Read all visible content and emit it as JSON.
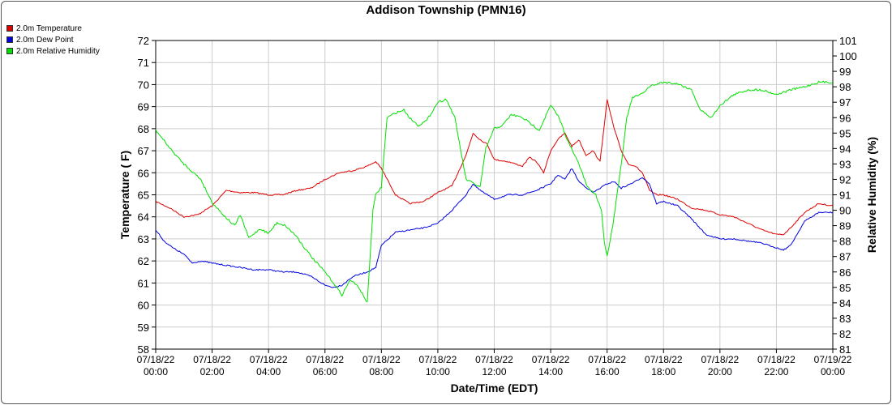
{
  "chart_data": {
    "type": "line",
    "title": "Addison Township (PMN16)",
    "xlabel": "Date/Time (EDT)",
    "ylabel": "Temperature ( F)",
    "y2label": "Relative Humidity (%)",
    "xlim": [
      0,
      24
    ],
    "ylim": [
      58,
      72
    ],
    "y2lim": [
      81,
      101
    ],
    "grid": true,
    "legend_position": "top-left",
    "x_ticks": [
      {
        "date": "07/18/22",
        "time": "00:00"
      },
      {
        "date": "07/18/22",
        "time": "02:00"
      },
      {
        "date": "07/18/22",
        "time": "04:00"
      },
      {
        "date": "07/18/22",
        "time": "06:00"
      },
      {
        "date": "07/18/22",
        "time": "08:00"
      },
      {
        "date": "07/18/22",
        "time": "10:00"
      },
      {
        "date": "07/18/22",
        "time": "12:00"
      },
      {
        "date": "07/18/22",
        "time": "14:00"
      },
      {
        "date": "07/18/22",
        "time": "16:00"
      },
      {
        "date": "07/18/22",
        "time": "18:00"
      },
      {
        "date": "07/18/22",
        "time": "20:00"
      },
      {
        "date": "07/18/22",
        "time": "22:00"
      },
      {
        "date": "07/19/22",
        "time": "00:00"
      }
    ],
    "y_ticks": [
      "58",
      "59",
      "60",
      "61",
      "62",
      "63",
      "64",
      "65",
      "66",
      "67",
      "68",
      "69",
      "70",
      "71",
      "72"
    ],
    "y2_ticks": [
      "81",
      "82",
      "83",
      "84",
      "85",
      "86",
      "87",
      "88",
      "89",
      "90",
      "91",
      "92",
      "93",
      "94",
      "95",
      "96",
      "97",
      "98",
      "99",
      "100",
      "101"
    ],
    "series": [
      {
        "name": "2.0m Temperature",
        "color": "#e00000",
        "axis": "left",
        "x": [
          0.0,
          0.5,
          1.0,
          1.5,
          2.0,
          2.5,
          3.0,
          3.5,
          4.0,
          4.5,
          5.0,
          5.5,
          6.0,
          6.5,
          7.0,
          7.5,
          7.8,
          8.0,
          8.5,
          9.0,
          9.5,
          10.0,
          10.5,
          11.0,
          11.25,
          11.5,
          11.75,
          12.0,
          12.5,
          13.0,
          13.25,
          13.5,
          13.75,
          14.0,
          14.25,
          14.5,
          14.75,
          15.0,
          15.25,
          15.5,
          15.75,
          16.0,
          16.25,
          16.5,
          16.75,
          17.0,
          17.25,
          17.5,
          17.75,
          18.0,
          18.5,
          19.0,
          19.5,
          20.0,
          20.5,
          21.0,
          21.5,
          22.0,
          22.25,
          22.5,
          23.0,
          23.5,
          24.0
        ],
        "y": [
          64.7,
          64.4,
          64.0,
          64.1,
          64.5,
          65.2,
          65.1,
          65.1,
          65.0,
          65.0,
          65.2,
          65.3,
          65.7,
          66.0,
          66.1,
          66.3,
          66.5,
          66.2,
          65.0,
          64.6,
          64.7,
          65.1,
          65.4,
          66.8,
          67.8,
          67.5,
          67.3,
          66.6,
          66.5,
          66.3,
          66.7,
          66.5,
          66.0,
          67.0,
          67.5,
          67.8,
          67.2,
          67.5,
          66.8,
          67.0,
          66.5,
          69.3,
          68.0,
          67.0,
          66.4,
          66.3,
          66.0,
          65.2,
          65.0,
          65.0,
          64.8,
          64.4,
          64.3,
          64.1,
          64.0,
          63.7,
          63.4,
          63.2,
          63.2,
          63.5,
          64.2,
          64.6,
          64.5
        ]
      },
      {
        "name": "2.0m Dew Point",
        "color": "#0000e0",
        "axis": "left",
        "x": [
          0.0,
          0.3,
          0.6,
          1.0,
          1.3,
          1.6,
          2.0,
          2.5,
          3.0,
          3.5,
          4.0,
          4.5,
          5.0,
          5.5,
          6.0,
          6.3,
          6.6,
          7.0,
          7.5,
          7.8,
          8.0,
          8.5,
          9.0,
          9.5,
          10.0,
          10.5,
          11.0,
          11.25,
          11.5,
          12.0,
          12.5,
          13.0,
          13.5,
          14.0,
          14.25,
          14.5,
          14.75,
          15.0,
          15.5,
          16.0,
          16.25,
          16.5,
          17.0,
          17.25,
          17.5,
          17.75,
          18.0,
          18.5,
          19.0,
          19.5,
          20.0,
          20.5,
          21.0,
          21.5,
          22.0,
          22.25,
          22.5,
          23.0,
          23.5,
          24.0
        ],
        "y": [
          63.4,
          62.9,
          62.6,
          62.3,
          61.9,
          62.0,
          61.9,
          61.8,
          61.7,
          61.6,
          61.6,
          61.5,
          61.5,
          61.3,
          60.9,
          60.8,
          60.9,
          61.3,
          61.5,
          61.7,
          62.7,
          63.3,
          63.4,
          63.5,
          63.7,
          64.3,
          65.0,
          65.5,
          65.2,
          64.8,
          65.0,
          65.0,
          65.2,
          65.5,
          65.9,
          65.7,
          66.2,
          65.6,
          65.1,
          65.5,
          65.6,
          65.3,
          65.6,
          65.8,
          65.5,
          64.6,
          64.7,
          64.5,
          63.9,
          63.2,
          63.0,
          63.0,
          62.9,
          62.8,
          62.6,
          62.5,
          62.7,
          63.8,
          64.2,
          64.2
        ]
      },
      {
        "name": "2.0m Relative Humidity",
        "color": "#00e000",
        "axis": "right",
        "x": [
          0.0,
          0.3,
          0.6,
          1.0,
          1.3,
          1.6,
          2.0,
          2.5,
          2.8,
          3.0,
          3.3,
          3.5,
          3.7,
          4.0,
          4.3,
          4.6,
          5.0,
          5.3,
          5.6,
          6.0,
          6.3,
          6.6,
          6.9,
          7.2,
          7.5,
          7.7,
          7.8,
          8.0,
          8.2,
          8.5,
          8.8,
          9.0,
          9.3,
          9.6,
          10.0,
          10.3,
          10.6,
          11.0,
          11.2,
          11.5,
          11.7,
          12.0,
          12.3,
          12.6,
          13.0,
          13.3,
          13.6,
          14.0,
          14.3,
          14.6,
          15.0,
          15.3,
          15.6,
          15.8,
          15.9,
          16.0,
          16.2,
          16.5,
          16.7,
          16.9,
          17.2,
          17.5,
          17.8,
          18.0,
          18.5,
          19.0,
          19.3,
          19.7,
          20.0,
          20.5,
          21.0,
          21.5,
          22.0,
          22.5,
          23.0,
          23.5,
          24.0
        ],
        "y": [
          95.2,
          94.5,
          93.8,
          93.0,
          92.5,
          92.0,
          90.5,
          89.5,
          89.0,
          89.7,
          88.2,
          88.5,
          88.8,
          88.5,
          89.2,
          89.0,
          88.3,
          87.5,
          86.8,
          86.0,
          85.3,
          84.5,
          85.5,
          85.0,
          84.0,
          90.0,
          91.0,
          91.5,
          96.0,
          96.3,
          96.5,
          96.0,
          95.5,
          95.8,
          97.0,
          97.2,
          96.0,
          92.0,
          91.8,
          91.5,
          94.0,
          95.3,
          95.5,
          96.2,
          96.0,
          95.6,
          95.2,
          96.8,
          96.0,
          94.5,
          93.0,
          91.5,
          91.0,
          90.0,
          88.0,
          87.0,
          89.0,
          93.0,
          96.0,
          97.3,
          97.5,
          98.0,
          98.2,
          98.3,
          98.2,
          97.8,
          96.5,
          96.0,
          96.8,
          97.5,
          97.8,
          97.8,
          97.5,
          97.8,
          98.0,
          98.3,
          98.3
        ]
      }
    ]
  }
}
